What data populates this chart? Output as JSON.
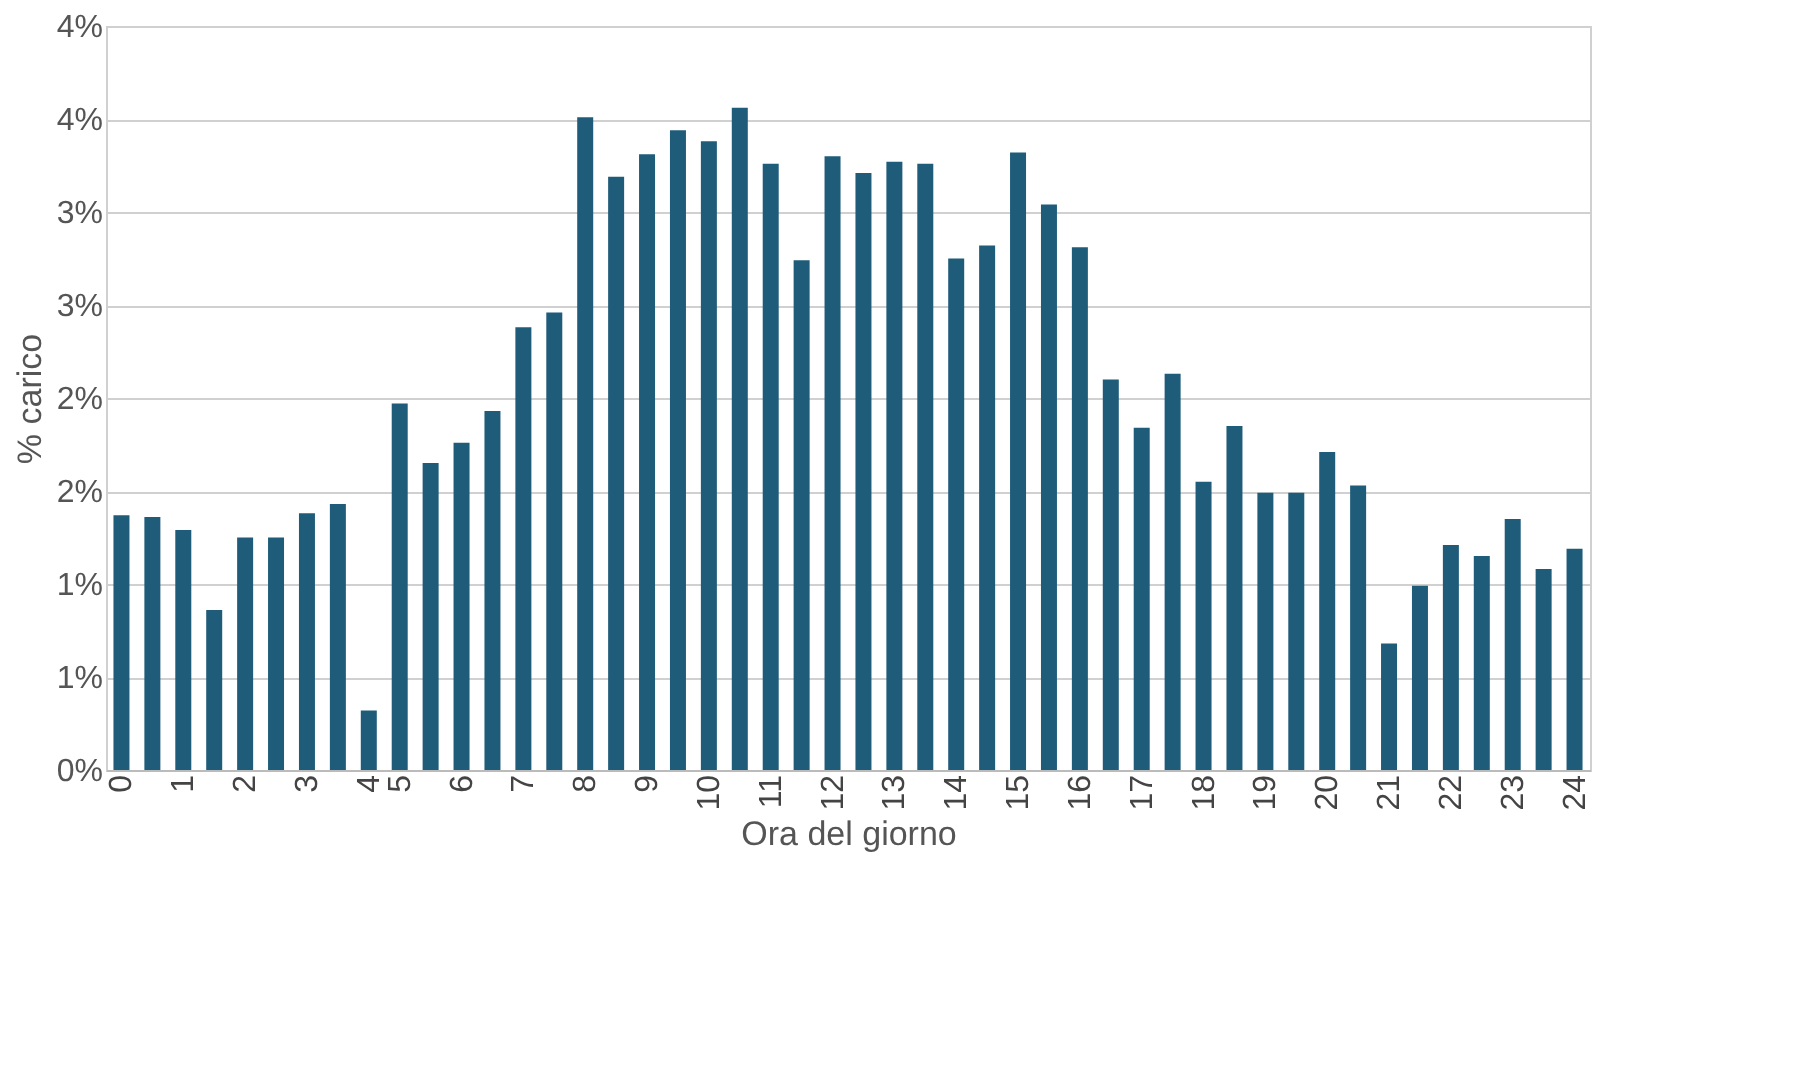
{
  "chart_data": {
    "type": "bar",
    "xlabel": "Ora del giorno",
    "ylabel": "% carico",
    "categories": [
      "0",
      null,
      "1",
      null,
      "2",
      null,
      "3",
      null,
      "4",
      null,
      "5",
      null,
      "6",
      null,
      "7",
      null,
      "8",
      null,
      "9",
      null,
      "10",
      null,
      "11",
      null,
      "12",
      null,
      "13",
      null,
      "14",
      null,
      "15",
      null,
      "16",
      null,
      "17",
      null,
      "18",
      null,
      "19",
      null,
      "20",
      null,
      "21",
      null,
      "22",
      null,
      "23",
      null,
      "24"
    ],
    "values": [
      1.37,
      1.36,
      1.29,
      0.86,
      1.25,
      1.25,
      1.38,
      1.43,
      0.32,
      null,
      1.97,
      1.65,
      1.76,
      1.93,
      2.38,
      2.46,
      3.51,
      3.19,
      3.31,
      3.44,
      3.38,
      3.56,
      3.26,
      2.74,
      3.3,
      3.21,
      3.27,
      3.26,
      2.75,
      2.82,
      3.32,
      3.04,
      2.81,
      2.1,
      1.84,
      2.13,
      1.55,
      1.85,
      1.49,
      1.49,
      1.71,
      1.53,
      0.68,
      0.99,
      1.21,
      1.15,
      1.35,
      1.08,
      1.19
    ],
    "color": "#1f5c7a",
    "ylim": [
      0,
      4
    ],
    "yticks": [
      {
        "value": 0,
        "label": "0%"
      },
      {
        "value": 0.5,
        "label": "1%"
      },
      {
        "value": 1,
        "label": "1%"
      },
      {
        "value": 1.5,
        "label": "2%"
      },
      {
        "value": 2,
        "label": "2%"
      },
      {
        "value": 2.5,
        "label": "3%"
      },
      {
        "value": 3,
        "label": "3%"
      },
      {
        "value": 3.5,
        "label": "4%"
      },
      {
        "value": 4,
        "label": "4%"
      }
    ],
    "grid": "y"
  }
}
